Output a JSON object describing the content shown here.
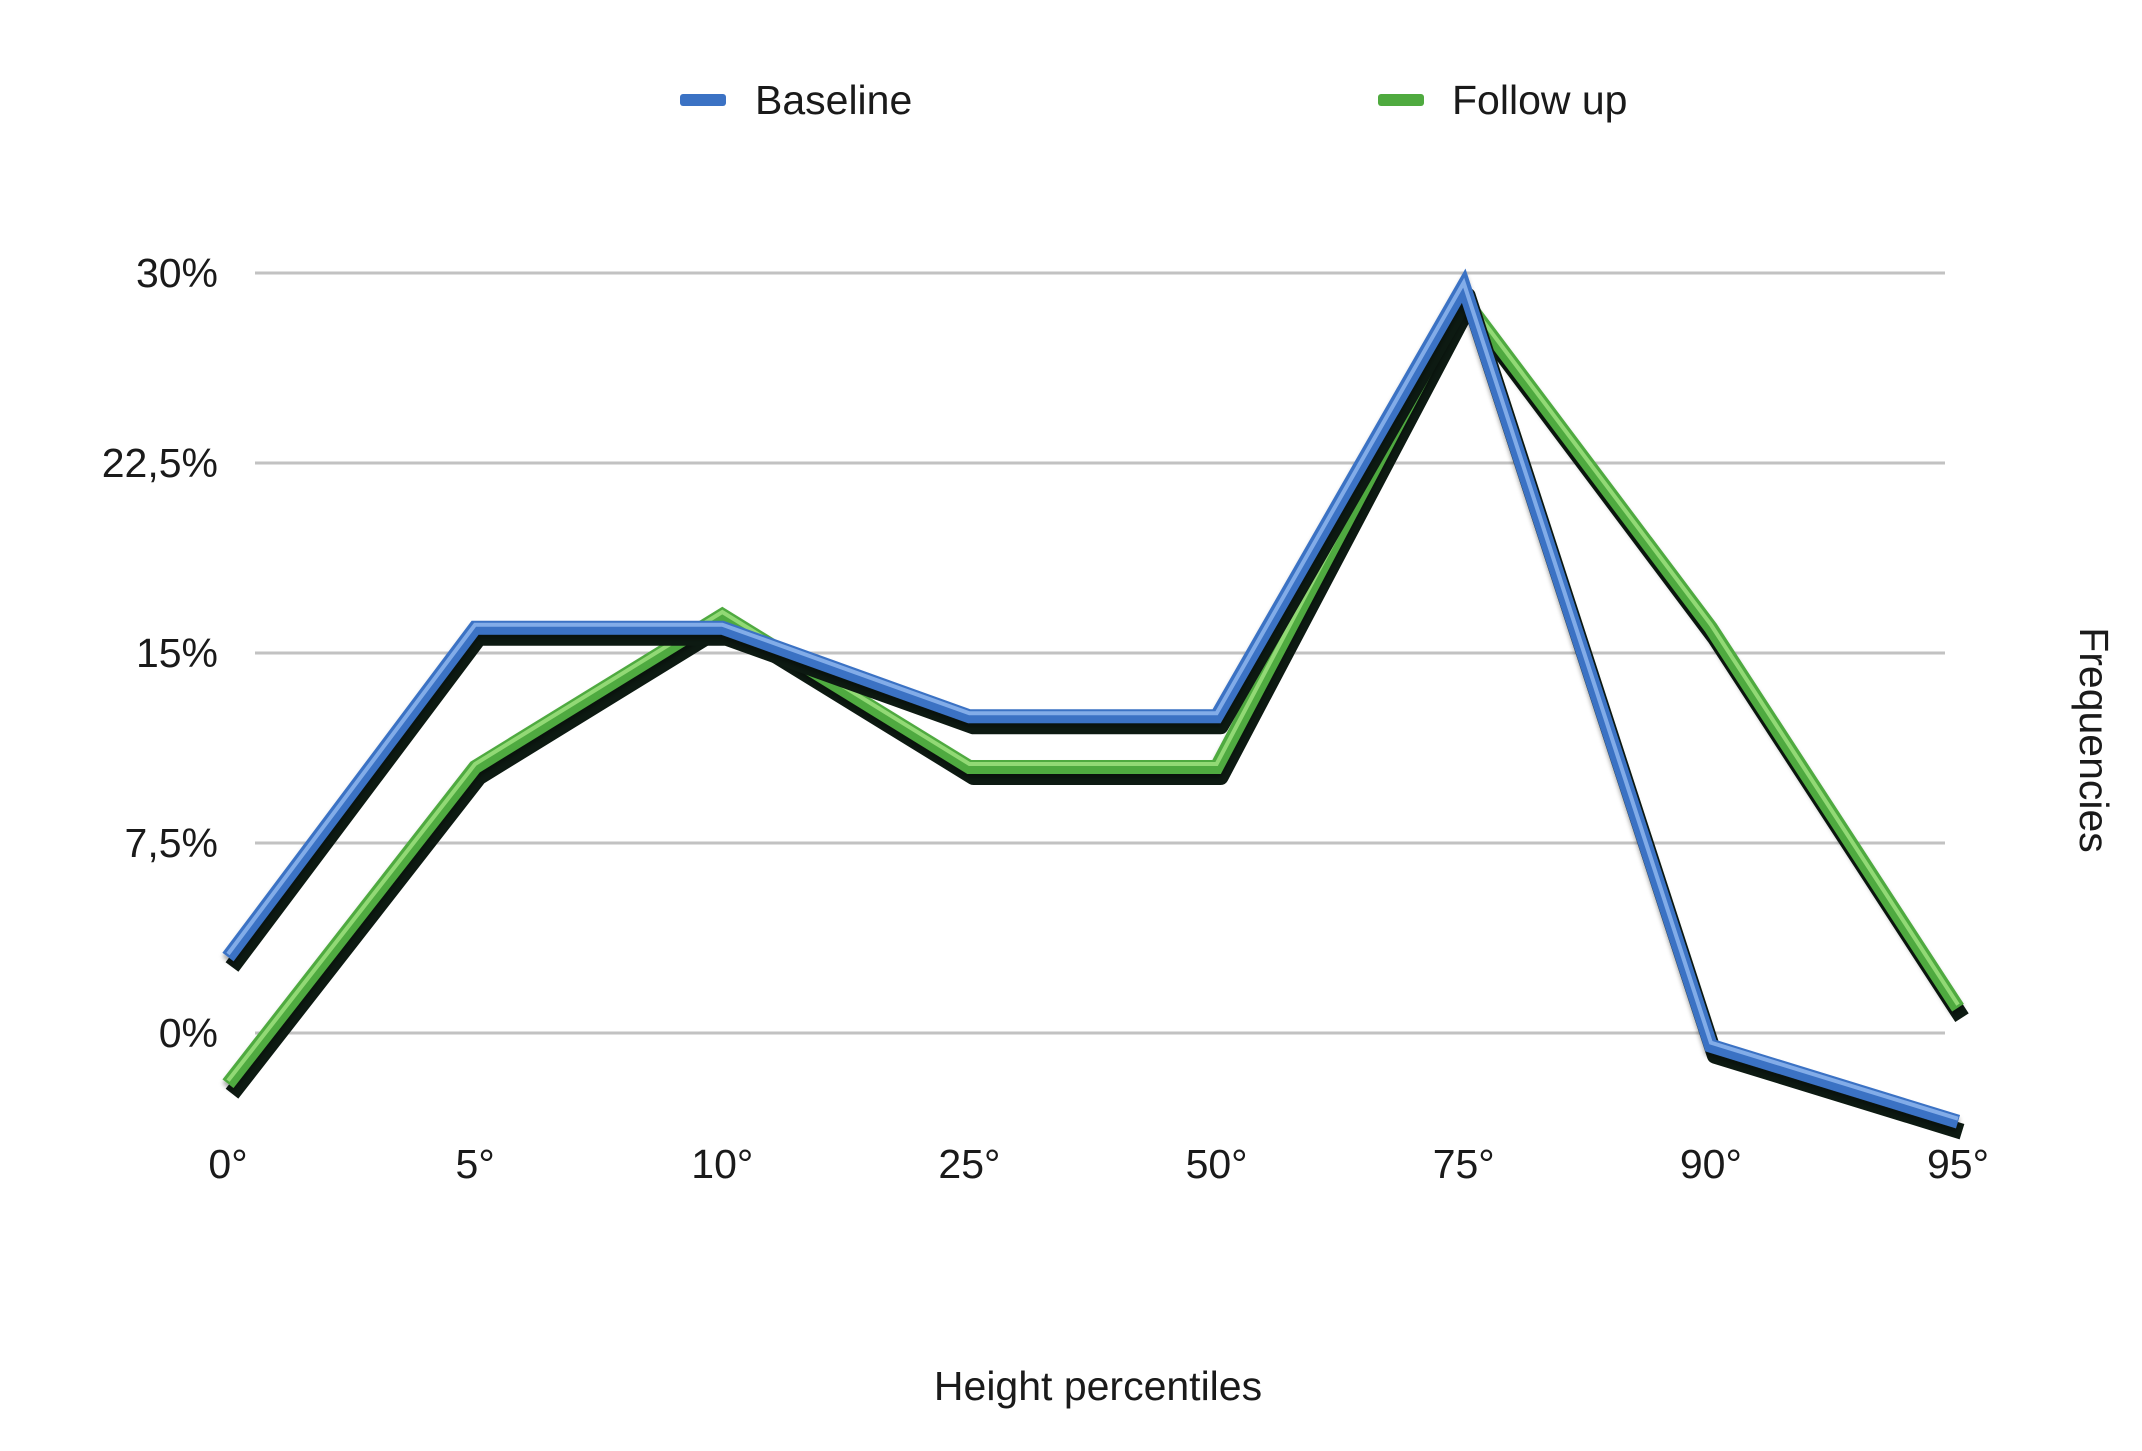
{
  "chart_data": {
    "type": "line",
    "categories": [
      "0°",
      "5°",
      "10°",
      "25°",
      "50°",
      "75°",
      "90°",
      "95°"
    ],
    "series": [
      {
        "name": "Baseline",
        "color": "#3b72c4",
        "values": [
          3,
          16,
          16,
          12.5,
          12.5,
          29.5,
          -0.5,
          -3.5
        ]
      },
      {
        "name": "Follow up",
        "color": "#4faa3f",
        "values": [
          -2,
          10.5,
          16.5,
          10.5,
          10.5,
          29,
          16,
          1
        ]
      }
    ],
    "y_ticks": [
      "0%",
      "7,5%",
      "15%",
      "22,5%",
      "30%"
    ],
    "y_tick_values": [
      0,
      7.5,
      15,
      22.5,
      30
    ],
    "ylim": [
      -4,
      30
    ],
    "xlabel": "Height percentiles",
    "ylabel": "Frequencies",
    "grid": true,
    "legend_position": "top"
  }
}
